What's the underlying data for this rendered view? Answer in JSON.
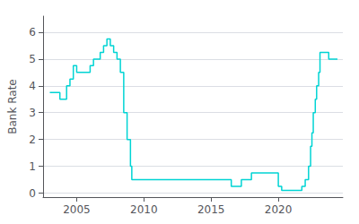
{
  "chart_data": {
    "type": "step",
    "ylabel": "Bank Rate",
    "color": "#00d4d4",
    "xlim": [
      2002.5,
      2024.8
    ],
    "xticks": [
      2005,
      2010,
      2015,
      2020
    ],
    "ylim": [
      -0.15,
      6.6
    ],
    "yticks": [
      0,
      1,
      2,
      3,
      4,
      5,
      6
    ],
    "grid": true,
    "x": [
      2003.0,
      2003.75,
      2003.75,
      2004.25,
      2004.25,
      2004.5,
      2004.5,
      2004.75,
      2004.75,
      2005.0,
      2005.0,
      2005.5,
      2006.0,
      2006.0,
      2006.25,
      2006.25,
      2006.75,
      2006.75,
      2007.0,
      2007.0,
      2007.25,
      2007.25,
      2007.5,
      2007.5,
      2007.75,
      2007.75,
      2008.0,
      2008.0,
      2008.25,
      2008.25,
      2008.5,
      2008.5,
      2008.75,
      2008.75,
      2009.0,
      2009.0,
      2009.1,
      2009.1,
      2016.5,
      2016.5,
      2017.25,
      2017.25,
      2018.0,
      2018.0,
      2018.75,
      2020.0,
      2020.0,
      2020.25,
      2020.25,
      2021.75,
      2021.75,
      2022.0,
      2022.0,
      2022.25,
      2022.25,
      2022.4,
      2022.4,
      2022.5,
      2022.5,
      2022.6,
      2022.6,
      2022.75,
      2022.75,
      2022.85,
      2022.85,
      2023.0,
      2023.0,
      2023.1,
      2023.1,
      2023.5,
      2023.75,
      2023.75,
      2024.4
    ],
    "values": [
      3.75,
      3.75,
      3.5,
      3.5,
      4.0,
      4.0,
      4.25,
      4.25,
      4.75,
      4.75,
      4.5,
      4.5,
      4.5,
      4.75,
      4.75,
      5.0,
      5.0,
      5.25,
      5.25,
      5.5,
      5.5,
      5.75,
      5.75,
      5.5,
      5.5,
      5.25,
      5.25,
      5.0,
      5.0,
      4.5,
      4.5,
      3.0,
      3.0,
      2.0,
      2.0,
      1.0,
      1.0,
      0.5,
      0.5,
      0.25,
      0.25,
      0.5,
      0.5,
      0.75,
      0.75,
      0.75,
      0.25,
      0.25,
      0.1,
      0.1,
      0.25,
      0.25,
      0.5,
      0.5,
      1.0,
      1.0,
      1.75,
      1.75,
      2.25,
      2.25,
      3.0,
      3.0,
      3.5,
      3.5,
      4.0,
      4.0,
      4.5,
      4.5,
      5.25,
      5.25,
      5.25,
      5.0,
      5.0
    ]
  }
}
